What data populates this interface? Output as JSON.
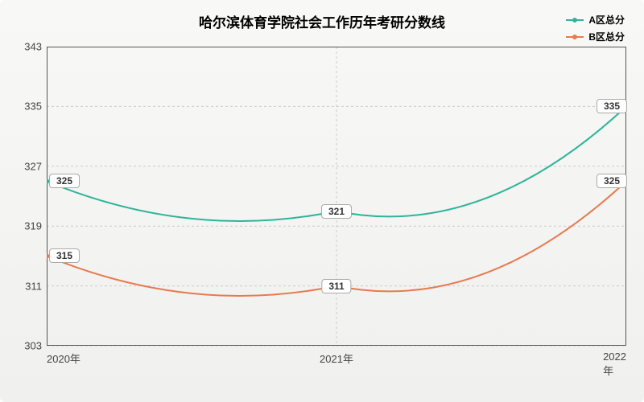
{
  "chart": {
    "type": "line",
    "title": "哈尔滨体育学院社会工作历年考研分数线",
    "title_fontsize": 17,
    "background_gradient": [
      "#f8f8f6",
      "#f0f0ee"
    ],
    "plot_border_color": "#555555",
    "grid_color": "#cccccc",
    "grid_dash": "3,3",
    "x": {
      "categories": [
        "2020年",
        "2021年",
        "2022年"
      ],
      "label_fontsize": 13
    },
    "y": {
      "min": 303,
      "max": 343,
      "tick_step": 8,
      "ticks": [
        303,
        311,
        319,
        327,
        335,
        343
      ],
      "label_fontsize": 13
    },
    "series": [
      {
        "name": "A区总分",
        "color": "#2fb49a",
        "line_width": 2,
        "marker": "circle",
        "marker_size": 5,
        "values": [
          325,
          321,
          335
        ],
        "ctrl_depth": 4
      },
      {
        "name": "B区总分",
        "color": "#e77a4f",
        "line_width": 2,
        "marker": "circle",
        "marker_size": 5,
        "values": [
          315,
          311,
          325
        ],
        "ctrl_depth": 4
      }
    ],
    "label_box": {
      "bg": "#ffffff",
      "border": "#aaaaaa",
      "fontsize": 12
    }
  }
}
